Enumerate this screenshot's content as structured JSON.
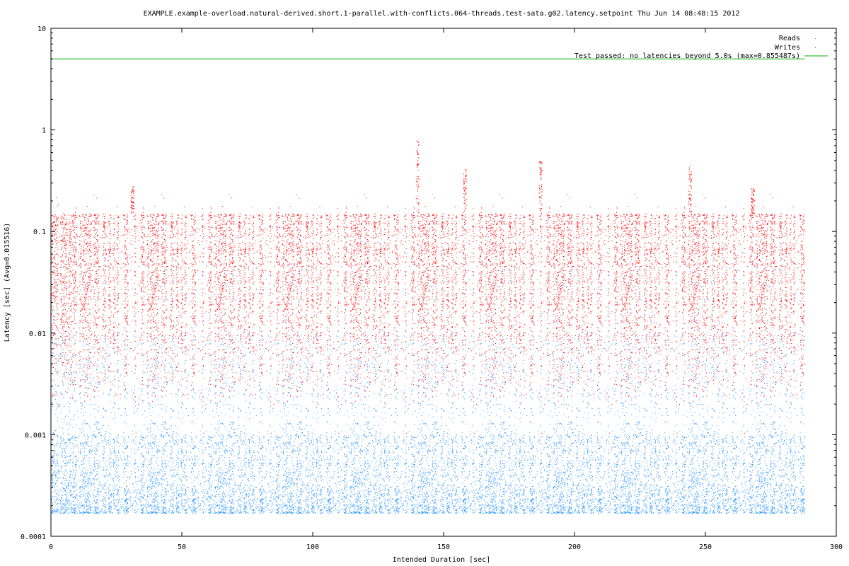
{
  "chart_data": {
    "type": "scatter",
    "title": "EXAMPLE.example-overload.natural-derived.short.1-parallel.with-conflicts.064-threads.test-sata.g02.latency.setpoint Thu Jun 14 08:48:15 2012",
    "xlabel": "Intended Duration [sec]",
    "ylabel": "Latency [sec]  (Avg=0.015516)",
    "xlim": [
      0,
      300
    ],
    "ylim": [
      0.0001,
      10
    ],
    "y_scale": "log",
    "x_ticks": [
      {
        "value": 0,
        "label": "0"
      },
      {
        "value": 50,
        "label": "50"
      },
      {
        "value": 100,
        "label": "100"
      },
      {
        "value": 150,
        "label": "150"
      },
      {
        "value": 200,
        "label": "200"
      },
      {
        "value": 250,
        "label": "250"
      },
      {
        "value": 300,
        "label": "300"
      }
    ],
    "y_ticks": [
      {
        "value": 0.0001,
        "label": "0.0001"
      },
      {
        "value": 0.001,
        "label": "0.001"
      },
      {
        "value": 0.01,
        "label": "0.01"
      },
      {
        "value": 0.1,
        "label": "0.1"
      },
      {
        "value": 1,
        "label": "1"
      },
      {
        "value": 10,
        "label": "10"
      }
    ],
    "legend_position": "top-right",
    "grid": false,
    "series": [
      {
        "name": "Reads",
        "color": "#1e90ff",
        "x_range": [
          0,
          288
        ],
        "y_min": 0.00017,
        "y_typical_max": 0.01,
        "y_max": 0.05
      },
      {
        "name": "Writes",
        "color": "#ff0000",
        "x_range": [
          0,
          288
        ],
        "y_min": 0.0005,
        "y_typical_max": 0.15,
        "y_max": 0.855487,
        "spikes": [
          {
            "x": 31,
            "y": 0.28
          },
          {
            "x": 140,
            "y": 0.85
          },
          {
            "x": 158,
            "y": 0.42
          },
          {
            "x": 187,
            "y": 0.5
          },
          {
            "x": 244,
            "y": 0.45
          },
          {
            "x": 268,
            "y": 0.27
          }
        ]
      },
      {
        "name": "Test passed: no latencies beyond 5.0s (max=0.855487s)",
        "color": "#00b000",
        "type": "line",
        "x": [
          0,
          288
        ],
        "y": [
          5.0,
          5.0
        ]
      }
    ]
  }
}
